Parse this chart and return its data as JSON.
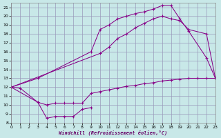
{
  "background_color": "#c8e8e8",
  "grid_color": "#9999bb",
  "line_color": "#880088",
  "xlabel": "Windchill (Refroidissement éolien,°C)",
  "xlim": [
    0,
    23
  ],
  "ylim": [
    8,
    21.5
  ],
  "xticks": [
    0,
    1,
    2,
    3,
    4,
    5,
    6,
    7,
    8,
    9,
    10,
    11,
    12,
    13,
    14,
    15,
    16,
    17,
    18,
    19,
    20,
    21,
    22,
    23
  ],
  "yticks": [
    8,
    9,
    10,
    11,
    12,
    13,
    14,
    15,
    16,
    17,
    18,
    19,
    20,
    21
  ],
  "curve_upper_x": [
    0,
    3,
    9,
    10,
    11,
    12,
    13,
    14,
    15,
    16,
    17,
    18,
    19,
    20,
    22,
    23
  ],
  "curve_upper_y": [
    12,
    13,
    16,
    18.5,
    19,
    19.7,
    20.0,
    20.3,
    20.5,
    20.8,
    21.2,
    21.2,
    19.7,
    18.3,
    15.3,
    13.0
  ],
  "curve_mid_x": [
    0,
    10,
    11,
    12,
    13,
    14,
    15,
    16,
    17,
    18,
    19,
    20,
    22,
    23
  ],
  "curve_mid_y": [
    12,
    15.8,
    16.5,
    17.5,
    18.0,
    18.7,
    19.2,
    19.7,
    20.0,
    19.7,
    19.5,
    18.5,
    18.0,
    13.0
  ],
  "curve_lower_x": [
    0,
    1,
    3,
    4,
    5,
    6,
    7,
    8,
    9,
    10,
    11,
    12,
    13,
    14,
    15,
    16,
    17,
    18,
    19,
    20,
    21,
    22,
    23
  ],
  "curve_lower_y": [
    12,
    11.9,
    10.3,
    10.0,
    10.2,
    10.2,
    10.2,
    10.2,
    11.3,
    11.5,
    11.7,
    11.9,
    12.1,
    12.2,
    12.4,
    12.5,
    12.7,
    12.8,
    12.9,
    13.0,
    13.0,
    13.0,
    13.0
  ],
  "curve_dip_x": [
    0,
    3,
    4,
    5,
    6,
    7,
    8,
    9
  ],
  "curve_dip_y": [
    12,
    10.3,
    8.5,
    8.7,
    8.7,
    8.7,
    9.5,
    9.7
  ]
}
